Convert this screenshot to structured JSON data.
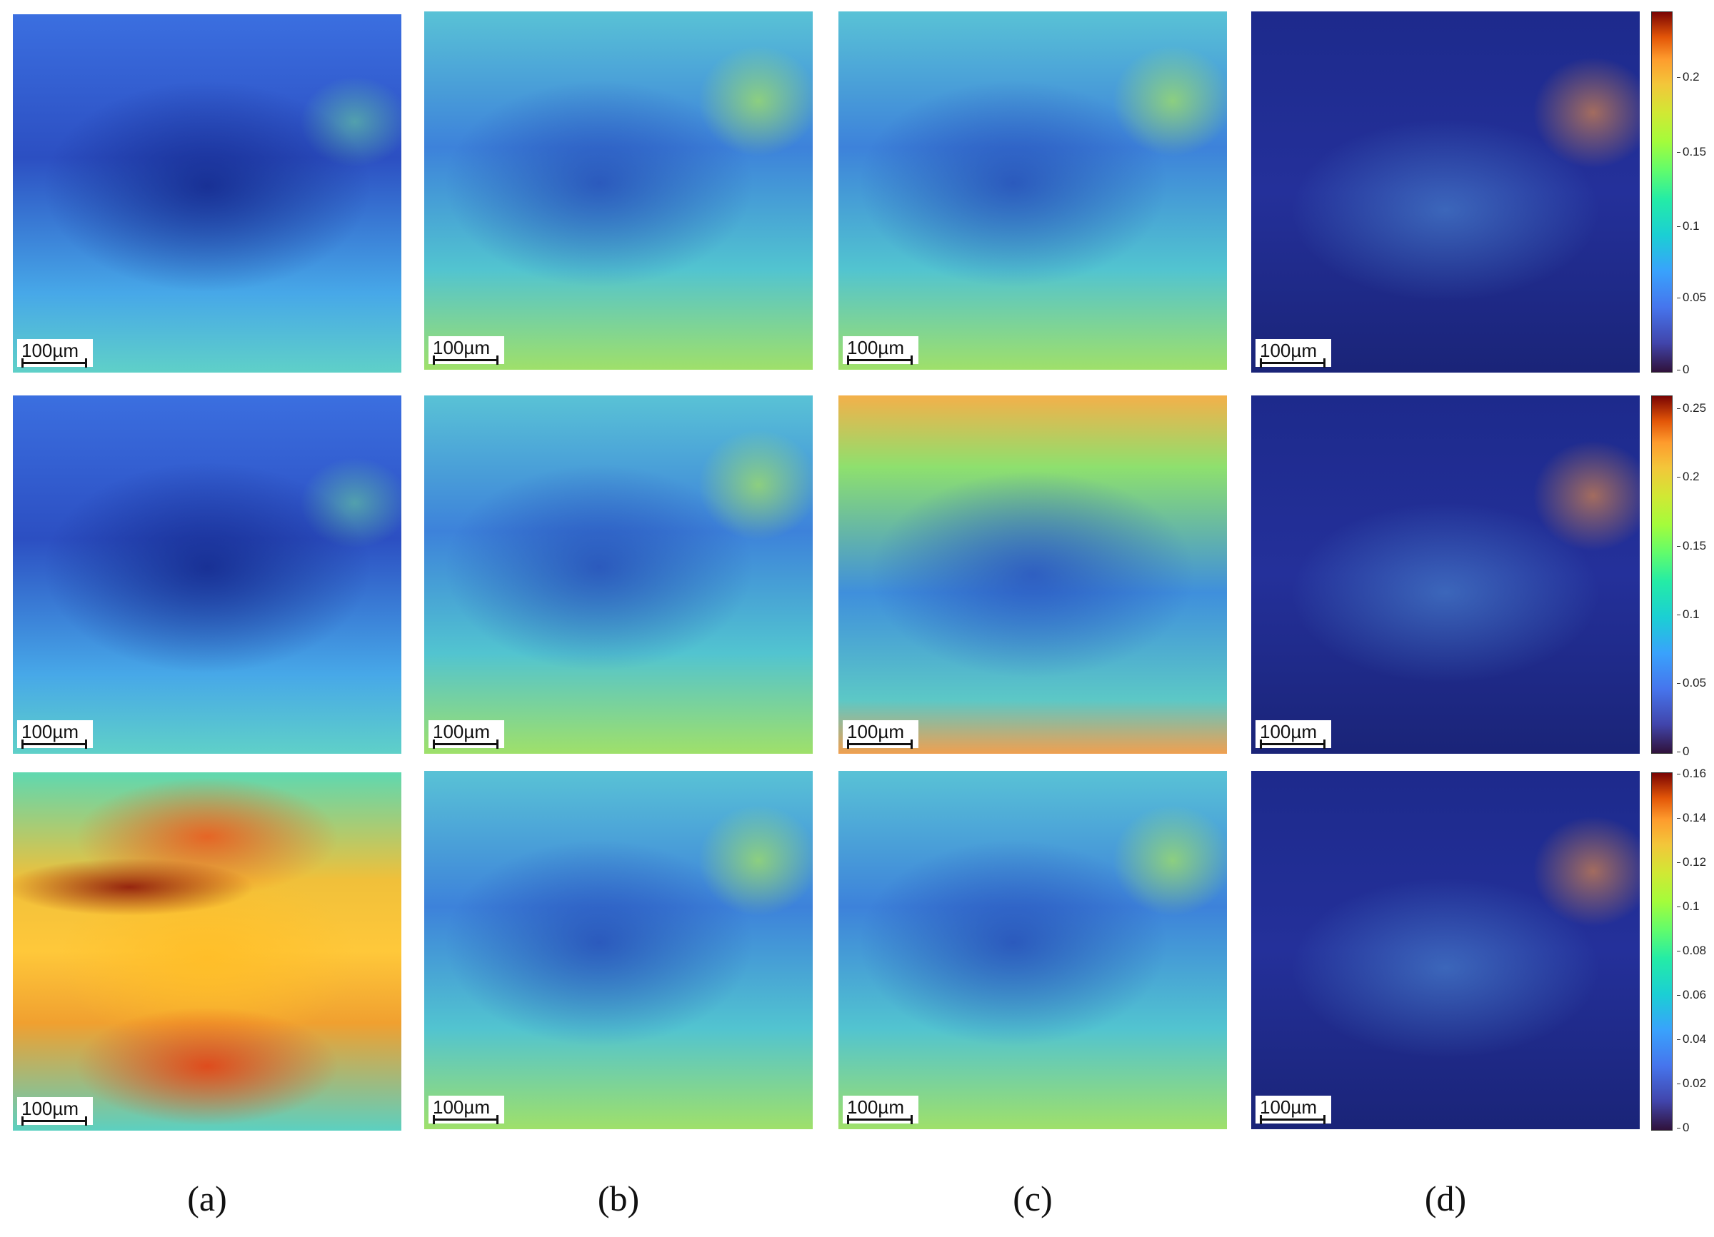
{
  "scalebar_text": "100µm",
  "panels": [
    "(a)",
    "(b)",
    "(c)",
    "(d)"
  ],
  "colorbars": [
    {
      "ticks": [
        "0.2",
        "0.15",
        "0.1",
        "0.05",
        "0"
      ],
      "max": 0.24
    },
    {
      "ticks": [
        "0.25",
        "0.2",
        "0.15",
        "0.1",
        "0.05",
        "0"
      ],
      "max": 0.26
    },
    {
      "ticks": [
        "0.16",
        "0.14",
        "0.12",
        "0.1",
        "0.08",
        "0.06",
        "0.04",
        "0.02",
        "0"
      ],
      "max": 0.16
    }
  ],
  "colormap": "turbo"
}
